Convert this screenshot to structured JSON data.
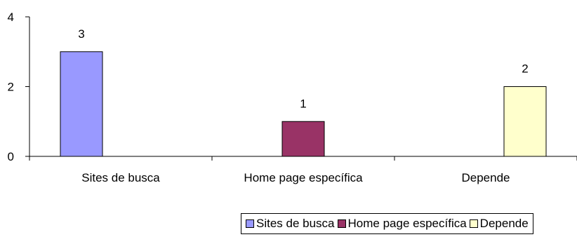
{
  "chart_data": {
    "type": "bar",
    "title": "",
    "xlabel": "",
    "ylabel": "",
    "categories": [
      "Sites de busca",
      "Home page específica",
      "Depende"
    ],
    "series": [
      {
        "name": "Sites de busca",
        "color": "#9999ff",
        "values": [
          3,
          null,
          null
        ]
      },
      {
        "name": "Home page específica",
        "color": "#993366",
        "values": [
          null,
          1,
          null
        ]
      },
      {
        "name": "Depende",
        "color": "#ffffcc",
        "values": [
          null,
          null,
          2
        ]
      }
    ],
    "data_labels": [
      "3",
      "1",
      "2"
    ],
    "ylim": [
      0,
      4
    ],
    "yticks": [
      0,
      2,
      4
    ],
    "grid": false,
    "legend": "bottom"
  }
}
